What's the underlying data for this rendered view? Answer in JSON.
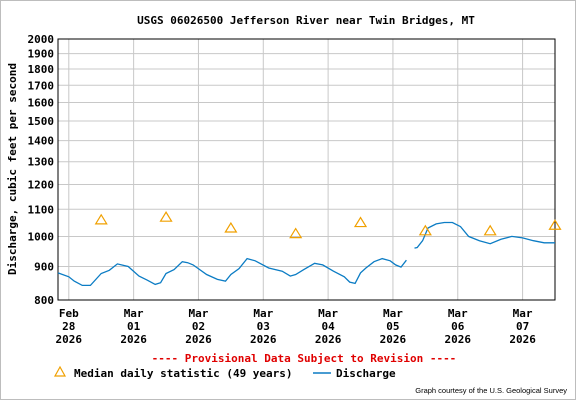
{
  "chart_data": {
    "type": "line",
    "title": "USGS 06026500 Jefferson River near Twin Bridges, MT",
    "ylabel": "Discharge, cubic feet per second",
    "xlabel": "",
    "y_scale": "log",
    "ylim": [
      800,
      2000
    ],
    "y_ticks": [
      800,
      900,
      1000,
      1100,
      1200,
      1300,
      1400,
      1500,
      1600,
      1700,
      1800,
      1900,
      2000
    ],
    "y_tick_labels": [
      "800",
      "900",
      "1000",
      "1100",
      "1200",
      "1300",
      "1400",
      "1500",
      "1600",
      "1700",
      "1800",
      "1900",
      "2000"
    ],
    "xlim": [
      "2026-02-27T20:00",
      "2026-03-07T12:00"
    ],
    "x_ticks": [
      {
        "date": "2026-02-28",
        "lines": [
          "Feb",
          "28",
          "2026"
        ]
      },
      {
        "date": "2026-03-01",
        "lines": [
          "Mar",
          "01",
          "2026"
        ]
      },
      {
        "date": "2026-03-02",
        "lines": [
          "Mar",
          "02",
          "2026"
        ]
      },
      {
        "date": "2026-03-03",
        "lines": [
          "Mar",
          "03",
          "2026"
        ]
      },
      {
        "date": "2026-03-04",
        "lines": [
          "Mar",
          "04",
          "2026"
        ]
      },
      {
        "date": "2026-03-05",
        "lines": [
          "Mar",
          "05",
          "2026"
        ]
      },
      {
        "date": "2026-03-06",
        "lines": [
          "Mar",
          "06",
          "2026"
        ]
      },
      {
        "date": "2026-03-07",
        "lines": [
          "Mar",
          "07",
          "2026"
        ]
      }
    ],
    "grid": true,
    "provisional_note": "---- Provisional Data Subject to Revision ----",
    "legend": [
      {
        "label": "Median daily statistic (49 years)",
        "marker": "triangle",
        "color": "#f0a000"
      },
      {
        "label": "Discharge",
        "marker": "line",
        "color": "#0b7cc4"
      }
    ],
    "credit": "Graph courtesy of the U.S. Geological Survey",
    "median": {
      "x": [
        "2026-02-28T12:00",
        "2026-03-01T12:00",
        "2026-03-02T12:00",
        "2026-03-03T12:00",
        "2026-03-04T12:00",
        "2026-03-05T12:00",
        "2026-03-06T12:00",
        "2026-03-07T12:00"
      ],
      "y": [
        1060,
        1070,
        1030,
        1010,
        1050,
        1020,
        1020,
        1040
      ]
    },
    "discharge": {
      "segments": [
        {
          "x": [
            "2026-02-27T20:00",
            "2026-02-28T00:00",
            "2026-02-28T02:00",
            "2026-02-28T05:00",
            "2026-02-28T08:00",
            "2026-02-28T12:00",
            "2026-02-28T15:00",
            "2026-02-28T18:00",
            "2026-02-28T22:00",
            "2026-03-01T02:00",
            "2026-03-01T05:00",
            "2026-03-01T08:00",
            "2026-03-01T10:00",
            "2026-03-01T12:00",
            "2026-03-01T15:00",
            "2026-03-01T18:00",
            "2026-03-01T20:00",
            "2026-03-01T22:00",
            "2026-03-02T03:00",
            "2026-03-02T07:00",
            "2026-03-02T10:00",
            "2026-03-02T12:00",
            "2026-03-02T15:00",
            "2026-03-02T18:00",
            "2026-03-02T21:00",
            "2026-03-03T02:00",
            "2026-03-03T07:00",
            "2026-03-03T10:00",
            "2026-03-03T12:00",
            "2026-03-03T15:00",
            "2026-03-03T19:00",
            "2026-03-03T22:00",
            "2026-03-04T02:00",
            "2026-03-04T06:00",
            "2026-03-04T08:00",
            "2026-03-04T10:00",
            "2026-03-04T12:00",
            "2026-03-04T14:00",
            "2026-03-04T17:00",
            "2026-03-04T20:00",
            "2026-03-04T23:00",
            "2026-03-05T01:00",
            "2026-03-05T03:00",
            "2026-03-05T05:00"
          ],
          "y": [
            880,
            868,
            855,
            842,
            842,
            878,
            888,
            908,
            900,
            870,
            858,
            845,
            850,
            878,
            890,
            915,
            912,
            905,
            875,
            860,
            855,
            875,
            893,
            925,
            918,
            895,
            885,
            870,
            875,
            890,
            910,
            905,
            885,
            868,
            852,
            848,
            880,
            895,
            915,
            925,
            918,
            905,
            898,
            920
          ]
        },
        {
          "x": [
            "2026-03-05T08:00",
            "2026-03-05T09:00",
            "2026-03-05T11:00",
            "2026-03-05T13:00",
            "2026-03-05T16:00",
            "2026-03-05T19:00",
            "2026-03-05T22:00",
            "2026-03-06T01:00",
            "2026-03-06T04:00",
            "2026-03-06T08:00",
            "2026-03-06T12:00",
            "2026-03-06T16:00",
            "2026-03-06T20:00",
            "2026-03-07T00:00",
            "2026-03-07T04:00",
            "2026-03-07T08:00",
            "2026-03-07T12:00"
          ],
          "y": [
            960,
            962,
            985,
            1030,
            1045,
            1050,
            1050,
            1035,
            1000,
            985,
            975,
            990,
            1000,
            995,
            985,
            978,
            978
          ]
        }
      ]
    }
  }
}
